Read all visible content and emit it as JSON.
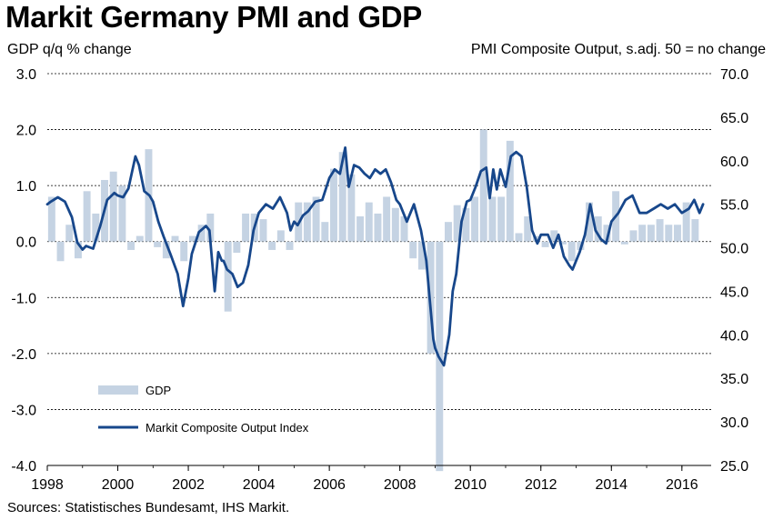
{
  "title": "Markit Germany PMI and GDP",
  "left_axis_title": "GDP q/q % change",
  "right_axis_title": "PMI Composite  Output, s.adj. 50 = no change",
  "source": "Sources: Statistisches Bundesamt, IHS Markit.",
  "colors": {
    "gdp_bar": "#c5d3e3",
    "pmi_line": "#17478b",
    "grid": "#000000"
  },
  "chart_data": {
    "type": "bar+line",
    "x_ticks": [
      "1998",
      "2000",
      "2002",
      "2004",
      "2006",
      "2008",
      "2010",
      "2012",
      "2014",
      "2016"
    ],
    "x_range": [
      1998.0,
      2016.83
    ],
    "left_axis": {
      "label": "GDP q/q % change",
      "ylim": [
        -4.0,
        3.0
      ],
      "ticks": [
        "-4.0",
        "-3.0",
        "-2.0",
        "-1.0",
        "0.0",
        "1.0",
        "2.0",
        "3.0"
      ]
    },
    "right_axis": {
      "label": "PMI Composite  Output, s.adj. 50 = no change",
      "ylim": [
        25.0,
        70.0
      ],
      "ticks": [
        "25.0",
        "30.0",
        "35.0",
        "40.0",
        "45.0",
        "50.0",
        "55.0",
        "60.0",
        "65.0",
        "70.0"
      ]
    },
    "grid": "horizontal dashed",
    "legend": {
      "position": "bottom-left",
      "entries": [
        "GDP",
        "Markit Composite Output Index"
      ]
    },
    "series": [
      {
        "name": "GDP",
        "kind": "bar",
        "axis": "left",
        "x": [
          1998.0,
          1998.25,
          1998.5,
          1998.75,
          1999.0,
          1999.25,
          1999.5,
          1999.75,
          2000.0,
          2000.25,
          2000.5,
          2000.75,
          2001.0,
          2001.25,
          2001.5,
          2001.75,
          2002.0,
          2002.25,
          2002.5,
          2002.75,
          2003.0,
          2003.25,
          2003.5,
          2003.75,
          2004.0,
          2004.25,
          2004.5,
          2004.75,
          2005.0,
          2005.25,
          2005.5,
          2005.75,
          2006.0,
          2006.25,
          2006.5,
          2006.75,
          2007.0,
          2007.25,
          2007.5,
          2007.75,
          2008.0,
          2008.25,
          2008.5,
          2008.75,
          2009.0,
          2009.25,
          2009.5,
          2009.75,
          2010.0,
          2010.25,
          2010.5,
          2010.75,
          2011.0,
          2011.25,
          2011.5,
          2011.75,
          2012.0,
          2012.25,
          2012.5,
          2012.75,
          2013.0,
          2013.25,
          2013.5,
          2013.75,
          2014.0,
          2014.25,
          2014.5,
          2014.75,
          2015.0,
          2015.25,
          2015.5,
          2015.75,
          2016.0,
          2016.25
        ],
        "values": [
          0.8,
          -0.35,
          0.3,
          -0.3,
          0.9,
          0.5,
          1.1,
          1.25,
          1.0,
          -0.15,
          0.1,
          1.65,
          -0.1,
          -0.3,
          0.1,
          -0.35,
          0.1,
          0.3,
          0.5,
          0.0,
          -1.25,
          -0.2,
          0.5,
          0.5,
          0.4,
          -0.15,
          0.2,
          -0.15,
          0.7,
          0.7,
          0.8,
          0.35,
          1.3,
          1.6,
          1.2,
          0.45,
          0.7,
          0.5,
          0.8,
          0.6,
          0.45,
          -0.3,
          -0.5,
          -2.0,
          -4.1,
          0.35,
          0.65,
          0.6,
          0.8,
          2.0,
          0.8,
          0.8,
          1.8,
          0.15,
          0.45,
          0.1,
          -0.1,
          0.2,
          -0.05,
          -0.35,
          -0.15,
          0.7,
          0.45,
          0.3,
          0.9,
          -0.05,
          0.2,
          0.3,
          0.3,
          0.4,
          0.3,
          0.3,
          0.7,
          0.4
        ]
      },
      {
        "name": "Markit Composite Output Index",
        "kind": "line",
        "axis": "right",
        "x": [
          1998.0,
          1998.1,
          1998.3,
          1998.5,
          1998.7,
          1998.85,
          1999.0,
          1999.1,
          1999.3,
          1999.5,
          1999.7,
          1999.9,
          2000.0,
          2000.15,
          2000.3,
          2000.5,
          2000.6,
          2000.75,
          2000.9,
          2001.0,
          2001.15,
          2001.3,
          2001.5,
          2001.7,
          2001.85,
          2002.0,
          2002.1,
          2002.3,
          2002.5,
          2002.6,
          2002.75,
          2002.85,
          2002.95,
          2003.0,
          2003.1,
          2003.25,
          2003.4,
          2003.55,
          2003.7,
          2003.85,
          2004.0,
          2004.2,
          2004.4,
          2004.6,
          2004.8,
          2004.9,
          2005.0,
          2005.1,
          2005.25,
          2005.4,
          2005.6,
          2005.8,
          2006.0,
          2006.15,
          2006.3,
          2006.45,
          2006.55,
          2006.7,
          2006.85,
          2007.0,
          2007.15,
          2007.3,
          2007.45,
          2007.6,
          2007.75,
          2007.9,
          2008.0,
          2008.2,
          2008.4,
          2008.6,
          2008.75,
          2008.85,
          2008.95,
          2009.0,
          2009.1,
          2009.25,
          2009.4,
          2009.5,
          2009.6,
          2009.75,
          2009.9,
          2010.0,
          2010.15,
          2010.3,
          2010.45,
          2010.55,
          2010.65,
          2010.75,
          2010.85,
          2011.0,
          2011.15,
          2011.3,
          2011.45,
          2011.6,
          2011.75,
          2011.9,
          2012.0,
          2012.2,
          2012.35,
          2012.5,
          2012.65,
          2012.8,
          2012.9,
          2013.0,
          2013.1,
          2013.25,
          2013.4,
          2013.55,
          2013.7,
          2013.85,
          2014.0,
          2014.2,
          2014.4,
          2014.6,
          2014.8,
          2015.0,
          2015.2,
          2015.4,
          2015.6,
          2015.8,
          2016.0,
          2016.2,
          2016.35,
          2016.5,
          2016.6
        ],
        "values": [
          55.0,
          55.3,
          55.8,
          55.3,
          53.5,
          50.6,
          49.8,
          50.2,
          49.9,
          52.5,
          55.5,
          56.3,
          56.0,
          55.8,
          56.8,
          60.5,
          59.5,
          56.5,
          56.0,
          55.3,
          53.0,
          51.3,
          49.2,
          47.0,
          43.3,
          46.5,
          49.3,
          51.8,
          52.5,
          52.0,
          45.0,
          49.5,
          48.5,
          48.5,
          47.5,
          47.0,
          45.5,
          46.0,
          48.0,
          52.0,
          54.0,
          55.0,
          54.5,
          55.8,
          54.0,
          52.0,
          53.0,
          52.6,
          53.7,
          54.2,
          55.3,
          55.5,
          58.0,
          59.0,
          58.5,
          61.5,
          57.0,
          59.5,
          59.2,
          58.5,
          58.0,
          59.0,
          58.5,
          59.0,
          57.5,
          55.5,
          55.0,
          53.0,
          55.0,
          52.0,
          48.5,
          44.0,
          39.5,
          38.5,
          37.5,
          36.5,
          40.0,
          45.0,
          47.0,
          53.0,
          55.3,
          55.5,
          57.0,
          58.8,
          59.2,
          55.7,
          59.0,
          56.7,
          59.0,
          57.0,
          60.5,
          61.0,
          60.5,
          57.0,
          52.0,
          50.5,
          51.5,
          51.5,
          50.0,
          51.5,
          49.0,
          48.0,
          47.5,
          48.5,
          49.5,
          51.5,
          55.0,
          52.0,
          51.0,
          50.5,
          53.0,
          54.0,
          55.5,
          56.0,
          54.0,
          54.0,
          54.5,
          55.0,
          54.5,
          55.0,
          54.0,
          54.5,
          55.5,
          54.0,
          55.0
        ]
      }
    ]
  }
}
